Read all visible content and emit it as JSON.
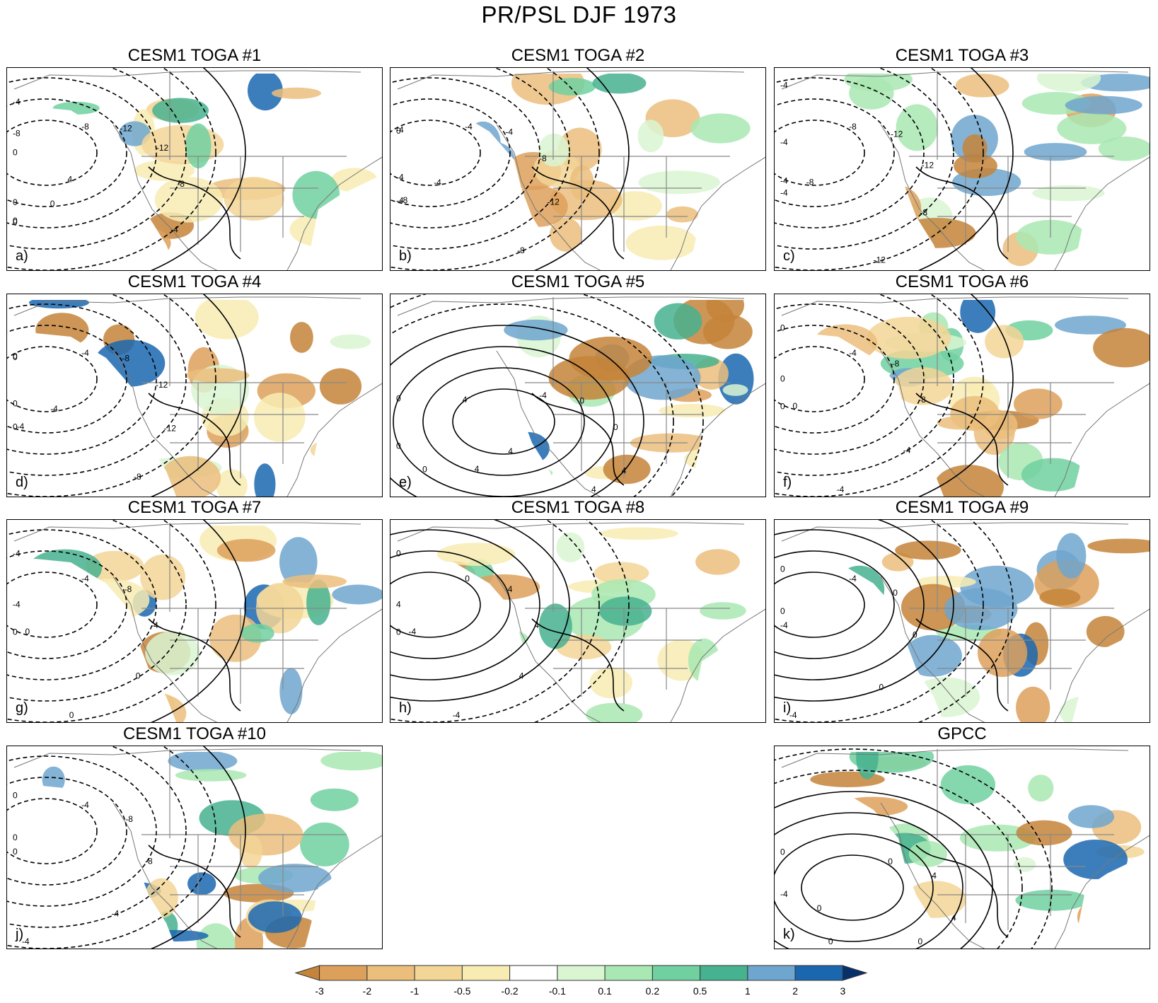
{
  "title": "PR/PSL DJF 1973",
  "panels": [
    {
      "title": "CESM1 TOGA #1",
      "letter": "a)",
      "labels": [
        [
          "-8",
          "-12",
          "-12",
          "-8",
          "-4",
          "4",
          "0",
          "0",
          "0",
          "0",
          "0",
          "-8",
          "-4"
        ]
      ]
    },
    {
      "title": "CESM1 TOGA #2",
      "letter": "b)",
      "labels": [
        [
          "-4",
          "-4",
          "-8",
          "-12",
          "-8",
          "-4",
          "-8",
          "-4",
          "-4",
          "-4",
          "0"
        ]
      ]
    },
    {
      "title": "CESM1 TOGA #3",
      "letter": "c)",
      "labels": [
        [
          "-8",
          "-12",
          "-12",
          "-8",
          "-12",
          "-8",
          "-4",
          "-4",
          "-4",
          "-4"
        ]
      ]
    },
    {
      "title": "CESM1 TOGA #4",
      "letter": "d)",
      "labels": [
        [
          "-4",
          "-8",
          "-12",
          "-12",
          "-8",
          "-4",
          "-4",
          "0",
          "0",
          "0",
          "0"
        ]
      ]
    },
    {
      "title": "CESM1 TOGA #5",
      "letter": "e)",
      "labels": [
        [
          "-4",
          "0",
          "0",
          "4",
          "4",
          "4",
          "4",
          "0",
          "0",
          "0",
          "4"
        ]
      ]
    },
    {
      "title": "CESM1 TOGA #6",
      "letter": "f)",
      "labels": [
        [
          "-4",
          "-8",
          "-8",
          "-4",
          "-4",
          "0",
          "0",
          "0",
          "0"
        ]
      ]
    },
    {
      "title": "CESM1 TOGA #7",
      "letter": "g)",
      "labels": [
        [
          "-4",
          "-8",
          "-4",
          "0",
          "0",
          "0",
          "0",
          "-4",
          "-4"
        ]
      ]
    },
    {
      "title": "CESM1 TOGA #8",
      "letter": "h)",
      "labels": [
        [
          "0",
          "4",
          "4",
          "4",
          "-4",
          "-4",
          "0",
          "4",
          "0"
        ]
      ]
    },
    {
      "title": "CESM1 TOGA #9",
      "letter": "i)",
      "labels": [
        [
          "-4",
          "0",
          "0",
          "0",
          "-4",
          "-4",
          "0",
          "0"
        ]
      ]
    },
    {
      "title": "CESM1 TOGA #10",
      "letter": "j)",
      "labels": [
        [
          "-4",
          "-8",
          "-8",
          "-4",
          "-4",
          "0",
          "0",
          "0"
        ]
      ]
    },
    {
      "title": "GPCC",
      "letter": "k)",
      "labels": [
        [
          "0",
          "4",
          "4",
          "0",
          "0",
          "0",
          "-4",
          "0"
        ]
      ]
    }
  ],
  "colorbar": {
    "ticks": [
      "-3",
      "-2",
      "-1",
      "-0.5",
      "-0.2",
      "-0.1",
      "0.1",
      "0.2",
      "0.5",
      "1",
      "2",
      "3"
    ],
    "colors": [
      "#c4843a",
      "#dda05b",
      "#ebbe7c",
      "#f3d596",
      "#f8ecb3",
      "#ffffff",
      "#d9f5d2",
      "#a9e8b3",
      "#70d0a0",
      "#46b28f",
      "#6fa6cf",
      "#1a67b0",
      "#08306b"
    ]
  }
}
